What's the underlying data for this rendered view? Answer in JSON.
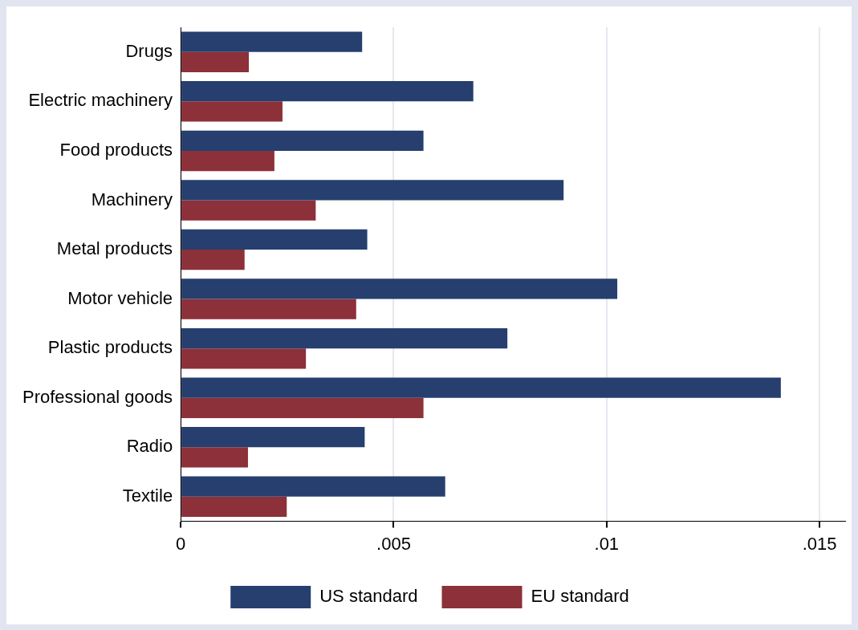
{
  "chart_data": {
    "type": "bar",
    "orientation": "horizontal",
    "categories": [
      "Drugs",
      "Electric machinery",
      "Food products",
      "Machinery",
      "Metal products",
      "Motor vehicle",
      "Plastic products",
      "Professional goods",
      "Radio",
      "Textile"
    ],
    "series": [
      {
        "name": "US standard",
        "color": "#263f6e",
        "values": [
          0.00426,
          0.00687,
          0.0057,
          0.00899,
          0.00438,
          0.01025,
          0.00767,
          0.01409,
          0.00432,
          0.00621
        ]
      },
      {
        "name": "EU standard",
        "color": "#8c3039",
        "values": [
          0.0016,
          0.00239,
          0.0022,
          0.00317,
          0.0015,
          0.00412,
          0.00294,
          0.0057,
          0.00158,
          0.00249
        ]
      }
    ],
    "xlim": [
      0,
      0.0156
    ],
    "xticks": [
      0,
      {
        "value": 0.005,
        "label": ".005"
      },
      {
        "value": 0.01,
        "label": ".01"
      },
      {
        "value": 0.015,
        "label": ".015"
      }
    ],
    "grid": "x",
    "legend": "bottom"
  }
}
